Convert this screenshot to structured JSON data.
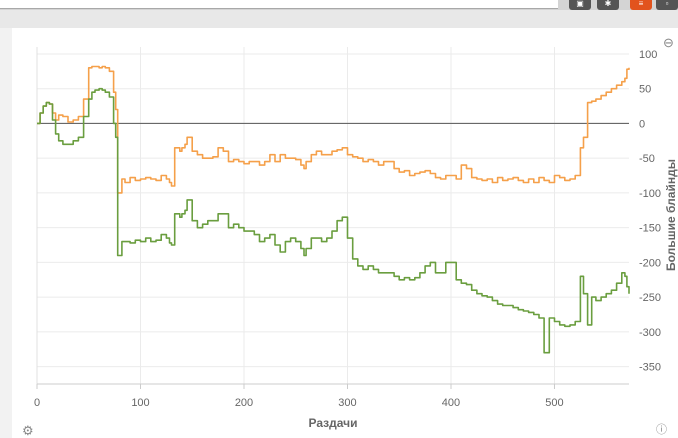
{
  "chart_data": {
    "type": "line",
    "xlabel": "Раздачи",
    "ylabel": "Большие блайнды",
    "xlim": [
      0,
      572
    ],
    "ylim": [
      -375,
      110
    ],
    "x_ticks": [
      0,
      100,
      200,
      300,
      400,
      500
    ],
    "y_ticks": [
      100,
      50,
      0,
      -50,
      -100,
      -150,
      -200,
      -250,
      -300,
      -350
    ],
    "grid": true,
    "zero_line": true,
    "series": [
      {
        "color": "#f5a04a",
        "x": [
          0,
          3,
          6,
          9,
          12,
          15,
          18,
          21,
          25,
          30,
          35,
          40,
          45,
          50,
          53,
          56,
          60,
          63,
          66,
          70,
          74,
          76,
          78,
          80,
          82,
          85,
          90,
          95,
          100,
          105,
          110,
          115,
          120,
          125,
          128,
          130,
          133,
          135,
          138,
          140,
          143,
          145,
          150,
          155,
          160,
          165,
          170,
          175,
          180,
          185,
          190,
          195,
          200,
          205,
          210,
          215,
          220,
          225,
          230,
          235,
          240,
          245,
          250,
          255,
          258,
          260,
          265,
          270,
          275,
          280,
          285,
          290,
          295,
          300,
          305,
          310,
          315,
          320,
          325,
          330,
          335,
          340,
          345,
          350,
          355,
          360,
          365,
          370,
          375,
          380,
          385,
          390,
          395,
          400,
          405,
          410,
          415,
          420,
          425,
          430,
          435,
          440,
          445,
          450,
          455,
          460,
          465,
          470,
          475,
          480,
          485,
          490,
          495,
          500,
          505,
          510,
          515,
          520,
          525,
          528,
          532,
          536,
          540,
          545,
          550,
          555,
          560,
          565,
          568,
          570,
          572
        ],
        "y": [
          0,
          15,
          25,
          30,
          28,
          15,
          5,
          12,
          10,
          2,
          5,
          10,
          35,
          80,
          82,
          82,
          80,
          82,
          80,
          75,
          45,
          20,
          -100,
          -100,
          -80,
          -85,
          -78,
          -82,
          -80,
          -78,
          -80,
          -82,
          -75,
          -80,
          -85,
          -90,
          -35,
          -35,
          -40,
          -35,
          -30,
          -20,
          -40,
          -45,
          -50,
          -50,
          -48,
          -35,
          -40,
          -55,
          -52,
          -55,
          -58,
          -55,
          -55,
          -60,
          -55,
          -45,
          -55,
          -45,
          -50,
          -50,
          -52,
          -60,
          -65,
          -55,
          -45,
          -40,
          -45,
          -45,
          -40,
          -38,
          -35,
          -45,
          -48,
          -50,
          -55,
          -52,
          -55,
          -60,
          -55,
          -55,
          -65,
          -70,
          -68,
          -75,
          -72,
          -70,
          -68,
          -72,
          -78,
          -80,
          -75,
          -75,
          -80,
          -60,
          -65,
          -78,
          -80,
          -82,
          -80,
          -85,
          -78,
          -82,
          -80,
          -78,
          -82,
          -85,
          -80,
          -85,
          -78,
          -82,
          -85,
          -75,
          -78,
          -82,
          -80,
          -75,
          -35,
          -20,
          30,
          32,
          35,
          40,
          45,
          50,
          55,
          60,
          65,
          78,
          80
        ]
      },
      {
        "color": "#6a9e3f",
        "x": [
          0,
          3,
          6,
          9,
          12,
          15,
          18,
          21,
          25,
          30,
          35,
          40,
          45,
          50,
          53,
          56,
          60,
          63,
          66,
          70,
          74,
          76,
          78,
          80,
          82,
          85,
          90,
          95,
          100,
          105,
          110,
          115,
          120,
          125,
          128,
          130,
          133,
          135,
          138,
          140,
          143,
          145,
          150,
          155,
          160,
          165,
          170,
          175,
          180,
          185,
          190,
          195,
          200,
          205,
          210,
          215,
          220,
          225,
          230,
          235,
          240,
          245,
          250,
          255,
          258,
          260,
          265,
          270,
          275,
          280,
          285,
          290,
          295,
          300,
          305,
          310,
          315,
          320,
          325,
          330,
          335,
          340,
          345,
          350,
          355,
          360,
          365,
          370,
          375,
          380,
          385,
          390,
          395,
          400,
          405,
          410,
          415,
          420,
          425,
          430,
          435,
          440,
          445,
          450,
          455,
          460,
          465,
          470,
          475,
          480,
          485,
          490,
          495,
          500,
          505,
          510,
          515,
          520,
          525,
          528,
          532,
          536,
          540,
          545,
          550,
          555,
          560,
          565,
          568,
          570,
          572
        ],
        "y": [
          0,
          15,
          25,
          30,
          28,
          5,
          -15,
          -25,
          -30,
          -30,
          -25,
          -20,
          10,
          35,
          45,
          48,
          50,
          48,
          45,
          38,
          0,
          -20,
          -190,
          -190,
          -170,
          -170,
          -172,
          -168,
          -170,
          -165,
          -170,
          -168,
          -160,
          -165,
          -172,
          -175,
          -130,
          -130,
          -135,
          -130,
          -125,
          -110,
          -140,
          -150,
          -145,
          -140,
          -140,
          -130,
          -130,
          -150,
          -145,
          -150,
          -155,
          -155,
          -160,
          -170,
          -165,
          -160,
          -175,
          -185,
          -170,
          -165,
          -170,
          -180,
          -190,
          -180,
          -165,
          -165,
          -170,
          -165,
          -155,
          -140,
          -135,
          -165,
          -195,
          -205,
          -210,
          -205,
          -210,
          -215,
          -215,
          -215,
          -220,
          -225,
          -222,
          -225,
          -222,
          -215,
          -205,
          -200,
          -215,
          -215,
          -200,
          -200,
          -225,
          -230,
          -232,
          -240,
          -245,
          -248,
          -250,
          -255,
          -260,
          -262,
          -262,
          -265,
          -268,
          -270,
          -272,
          -275,
          -280,
          -330,
          -280,
          -285,
          -290,
          -292,
          -290,
          -285,
          -220,
          -245,
          -290,
          -250,
          -255,
          -250,
          -245,
          -240,
          -230,
          -215,
          -220,
          -235,
          -245
        ]
      }
    ]
  }
}
